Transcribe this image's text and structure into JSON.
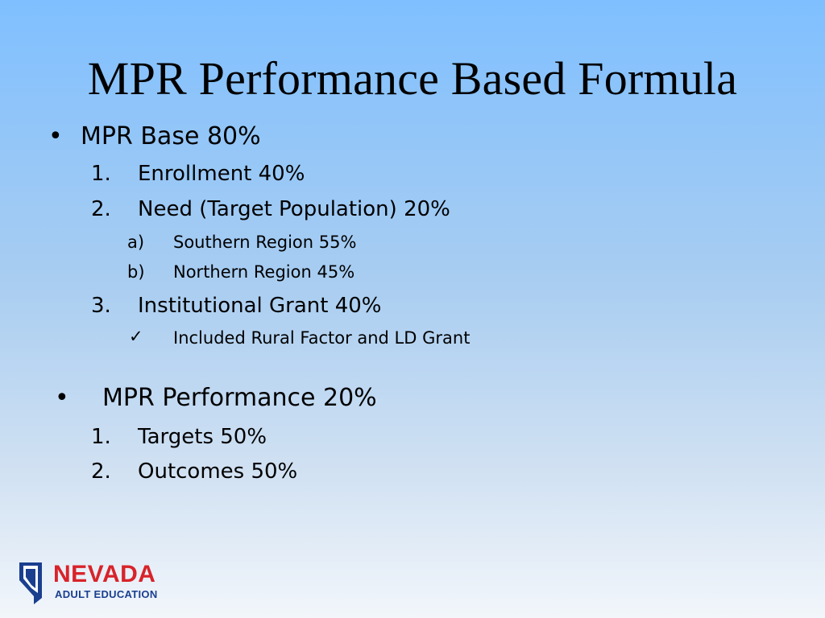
{
  "slide": {
    "title": "MPR Performance Based Formula",
    "sections": [
      {
        "bullet": "•",
        "label": "MPR Base   80%",
        "items": [
          {
            "marker": "1.",
            "label": "Enrollment  40%"
          },
          {
            "marker": "2.",
            "label": "Need (Target Population)  20%",
            "subitems": [
              {
                "marker": "a)",
                "label": "Southern Region 55%"
              },
              {
                "marker": "b)",
                "label": "Northern Region 45%"
              }
            ]
          },
          {
            "marker": "3.",
            "label": "Institutional Grant  40%",
            "subitems": [
              {
                "marker": "✓",
                "label": "Included Rural Factor and LD Grant"
              }
            ]
          }
        ]
      },
      {
        "bullet": "•",
        "label": "MPR Performance  20%",
        "items": [
          {
            "marker": "1.",
            "label": "Targets  50%"
          },
          {
            "marker": "2.",
            "label": "Outcomes 50%"
          }
        ]
      }
    ]
  },
  "logo": {
    "word": "NEVADA",
    "subtitle": "ADULT EDUCATION",
    "colors": {
      "primary": "#d8232a",
      "secondary": "#1a3f8f"
    }
  },
  "theme": {
    "background_top": "#7fbfff",
    "background_bottom": "#f2f6fb",
    "text": "#000000"
  }
}
